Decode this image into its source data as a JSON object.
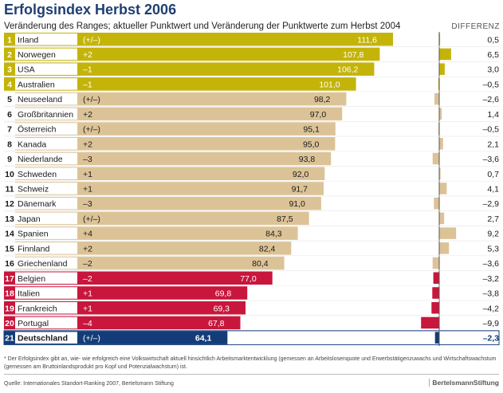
{
  "title": "Erfolgsindex Herbst 2006",
  "subtitle": "Veränderung des Ranges; aktueller Punktwert und Veränderung der Punktwerte zum Herbst 2004",
  "diff_header": "DIFFERENZ",
  "footnote": "* Der Erfolgsindex gibt an, wie- wie erfolgreich eine Volkswirtschaft aktuell hinsichtlich Arbeitsmarktentwicklung (gemessen an Arbeitslosenquote und Erwerbstätigenzuwachs und Wirtschaftswachstum (gemessen am Bruttoinlandsprodukt pro Kopf und Potenzialwachstum) ist.",
  "source": "Quelle:  Internationales Standort-Ranking 2007,  Bertelsmann Stiftung",
  "brand": "BertelsmannStiftung",
  "colors": {
    "olive": "#c4b40a",
    "tan": "#dcc397",
    "red": "#c8163c",
    "blue": "#143c78"
  },
  "chart_data": {
    "type": "bar",
    "title": "Erfolgsindex Herbst 2006",
    "categories": [
      "Irland",
      "Norwegen",
      "USA",
      "Australien",
      "Neuseeland",
      "Großbritannien",
      "Österreich",
      "Kanada",
      "Niederlande",
      "Schweden",
      "Schweiz",
      "Dänemark",
      "Japan",
      "Spanien",
      "Finnland",
      "Griechenland",
      "Belgien",
      "Italien",
      "Frankreich",
      "Portugal",
      "Deutschland"
    ],
    "ranks": [
      "1",
      "2",
      "3",
      "4",
      "5",
      "6",
      "7",
      "8",
      "9",
      "10",
      "11",
      "12",
      "13",
      "14",
      "15",
      "16",
      "17",
      "18",
      "19",
      "20",
      "21"
    ],
    "rank_change": [
      "(+/–)",
      "+2",
      "–1",
      "–1",
      "(+/–)",
      "+2",
      "(+/–)",
      "+2",
      "–3",
      "+1",
      "+1",
      "–3",
      "(+/–)",
      "+4",
      "+2",
      "–2",
      "–2",
      "+1",
      "+1",
      "–4",
      "(+/–)"
    ],
    "values": [
      111.6,
      107.8,
      106.2,
      101.0,
      98.2,
      97.0,
      95.1,
      95.0,
      93.8,
      92.0,
      91.7,
      91.0,
      87.5,
      84.3,
      82.4,
      80.4,
      77.0,
      69.8,
      69.3,
      67.8,
      64.1
    ],
    "value_labels": [
      "111,6",
      "107,8",
      "106,2",
      "101,0",
      "98,2",
      "97,0",
      "95,1",
      "95,0",
      "93,8",
      "92,0",
      "91,7",
      "91,0",
      "87,5",
      "84,3",
      "82,4",
      "80,4",
      "77,0",
      "69,8",
      "69,3",
      "67,8",
      "64,1"
    ],
    "differenz": [
      0.5,
      6.5,
      3.0,
      -0.5,
      -2.6,
      1.4,
      -0.5,
      2.1,
      -3.6,
      0.7,
      4.1,
      -2.9,
      2.7,
      9.2,
      5.3,
      -3.6,
      -3.2,
      -3.8,
      -4.2,
      -9.9,
      -2.3
    ],
    "differenz_labels": [
      "0,5",
      "6,5",
      "3,0",
      "–0,5",
      "–2,6",
      "1,4",
      "–0,5",
      "2,1",
      "–3,6",
      "0,7",
      "4,1",
      "–2,9",
      "2,7",
      "9,2",
      "5,3",
      "–3,6",
      "–3,2",
      "–3,8",
      "–4,2",
      "–9,9",
      "–2,3"
    ],
    "groups": [
      "olive",
      "olive",
      "olive",
      "olive",
      "tan",
      "tan",
      "tan",
      "tan",
      "tan",
      "tan",
      "tan",
      "tan",
      "tan",
      "tan",
      "tan",
      "tan",
      "red",
      "red",
      "red",
      "red",
      "blue"
    ],
    "highlight_index": 20
  }
}
